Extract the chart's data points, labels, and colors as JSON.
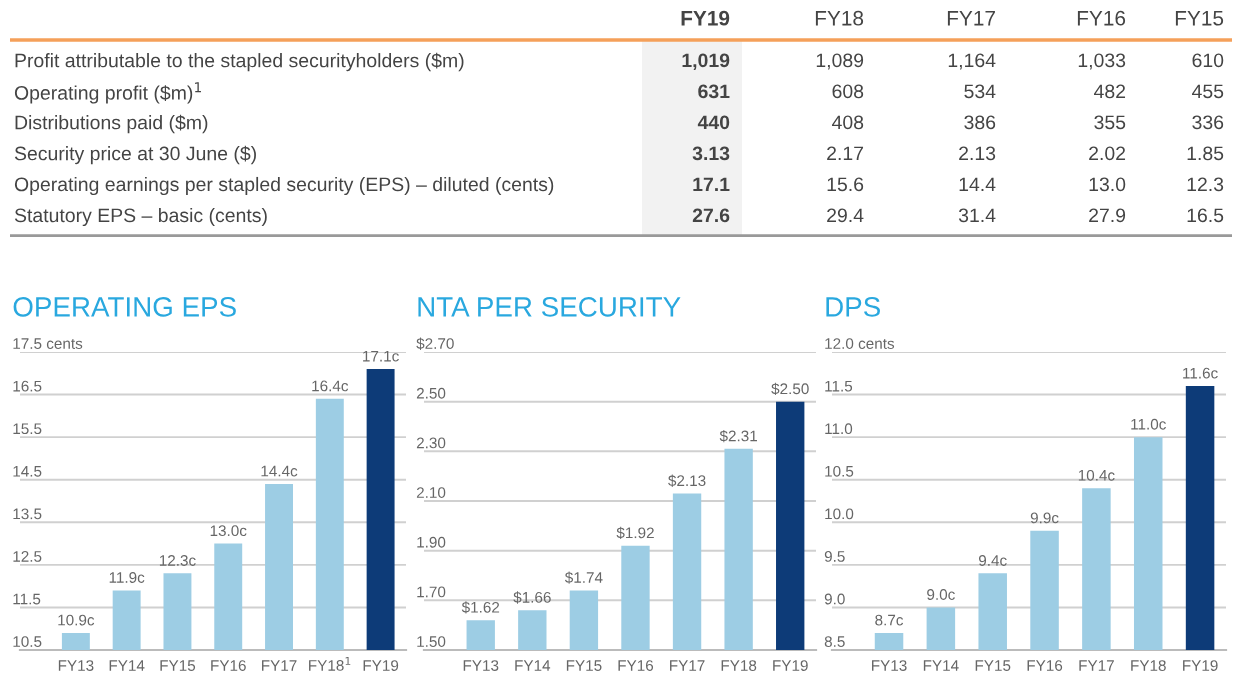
{
  "chart_data": [
    {
      "type": "other",
      "categories": [
        "FY19",
        "FY18",
        "FY17",
        "FY16",
        "FY15"
      ],
      "y_categories": [
        "Profit attributable to the stapled securityholders ($m)",
        "Operating profit ($m)$^{1}$",
        "Distributions paid ($m)",
        "Security price at 30 June ($)",
        "Operating earnings per stapled security (EPS) – diluted (cents)",
        "Statutory EPS – basic (cents)"
      ],
      "cell_labels": [
        [
          "1,019",
          "1,089",
          "1,164",
          "1,033",
          "610"
        ],
        [
          "631",
          "608",
          "534",
          "482",
          "455"
        ],
        [
          "440",
          "408",
          "386",
          "355",
          "336"
        ],
        [
          "3.13",
          "2.17",
          "2.13",
          "2.02",
          "1.85"
        ],
        [
          "17.1",
          "15.6",
          "14.4",
          "13.0",
          "12.3"
        ],
        [
          "27.6",
          "29.4",
          "31.4",
          "27.9",
          "16.5"
        ]
      ]
    },
    {
      "type": "bar",
      "title": "OPERATING EPS",
      "categories": [
        "FY13",
        "FY14",
        "FY15",
        "FY16",
        "FY17",
        "FY18$^{1}$",
        "FY19"
      ],
      "values": [
        10.9,
        11.9,
        12.3,
        13.0,
        14.4,
        16.4,
        17.1
      ],
      "value_labels": [
        "10.9c",
        "11.9c",
        "12.3c",
        "13.0c",
        "14.4c",
        "16.4c",
        "17.1c"
      ],
      "colors": [
        "#9dcde4",
        "#9dcde4",
        "#9dcde4",
        "#9dcde4",
        "#9dcde4",
        "#9dcde4",
        "#0d3b78"
      ],
      "ylim": [
        10.5,
        17.5
      ],
      "yticks": [
        10.5,
        11.5,
        12.5,
        13.5,
        14.5,
        15.5,
        16.5,
        {
          "value": 17.5,
          "label": "17.5 cents"
        }
      ],
      "grid": "y"
    },
    {
      "type": "bar",
      "title": "NTA PER SECURITY",
      "categories": [
        "FY13",
        "FY14",
        "FY15",
        "FY16",
        "FY17",
        "FY18",
        "FY19"
      ],
      "values": [
        1.62,
        1.66,
        1.74,
        1.92,
        2.13,
        2.31,
        2.5
      ],
      "value_labels": [
        "$1.62",
        "$1.66",
        "$1.74",
        "$1.92",
        "$2.13",
        "$2.31",
        "$2.50"
      ],
      "colors": [
        "#9dcde4",
        "#9dcde4",
        "#9dcde4",
        "#9dcde4",
        "#9dcde4",
        "#9dcde4",
        "#0d3b78"
      ],
      "ylim": [
        1.5,
        2.7
      ],
      "yticks": [
        {
          "value": 1.5,
          "label": "1.50"
        },
        {
          "value": 1.7,
          "label": "1.70"
        },
        {
          "value": 1.9,
          "label": "1.90"
        },
        {
          "value": 2.1,
          "label": "2.10"
        },
        {
          "value": 2.3,
          "label": "2.30"
        },
        {
          "value": 2.5,
          "label": "2.50"
        },
        {
          "value": 2.7,
          "label": "$2.70"
        }
      ],
      "grid": "y"
    },
    {
      "type": "bar",
      "title": "DPS",
      "categories": [
        "FY13",
        "FY14",
        "FY15",
        "FY16",
        "FY17",
        "FY18",
        "FY19"
      ],
      "values": [
        8.7,
        9.0,
        9.4,
        9.9,
        10.4,
        11.0,
        11.6
      ],
      "value_labels": [
        "8.7c",
        "9.0c",
        "9.4c",
        "9.9c",
        "10.4c",
        "11.0c",
        "11.6c"
      ],
      "colors": [
        "#9dcde4",
        "#9dcde4",
        "#9dcde4",
        "#9dcde4",
        "#9dcde4",
        "#9dcde4",
        "#0d3b78"
      ],
      "ylim": [
        8.5,
        12.0
      ],
      "yticks": [
        8.5,
        {
          "value": 9.0,
          "label": "9.0"
        },
        9.5,
        {
          "value": 10.0,
          "label": "10.0"
        },
        10.5,
        {
          "value": 11.0,
          "label": "11.0"
        },
        11.5,
        {
          "value": 12.0,
          "label": "12.0 cents"
        }
      ],
      "grid": "y"
    }
  ]
}
